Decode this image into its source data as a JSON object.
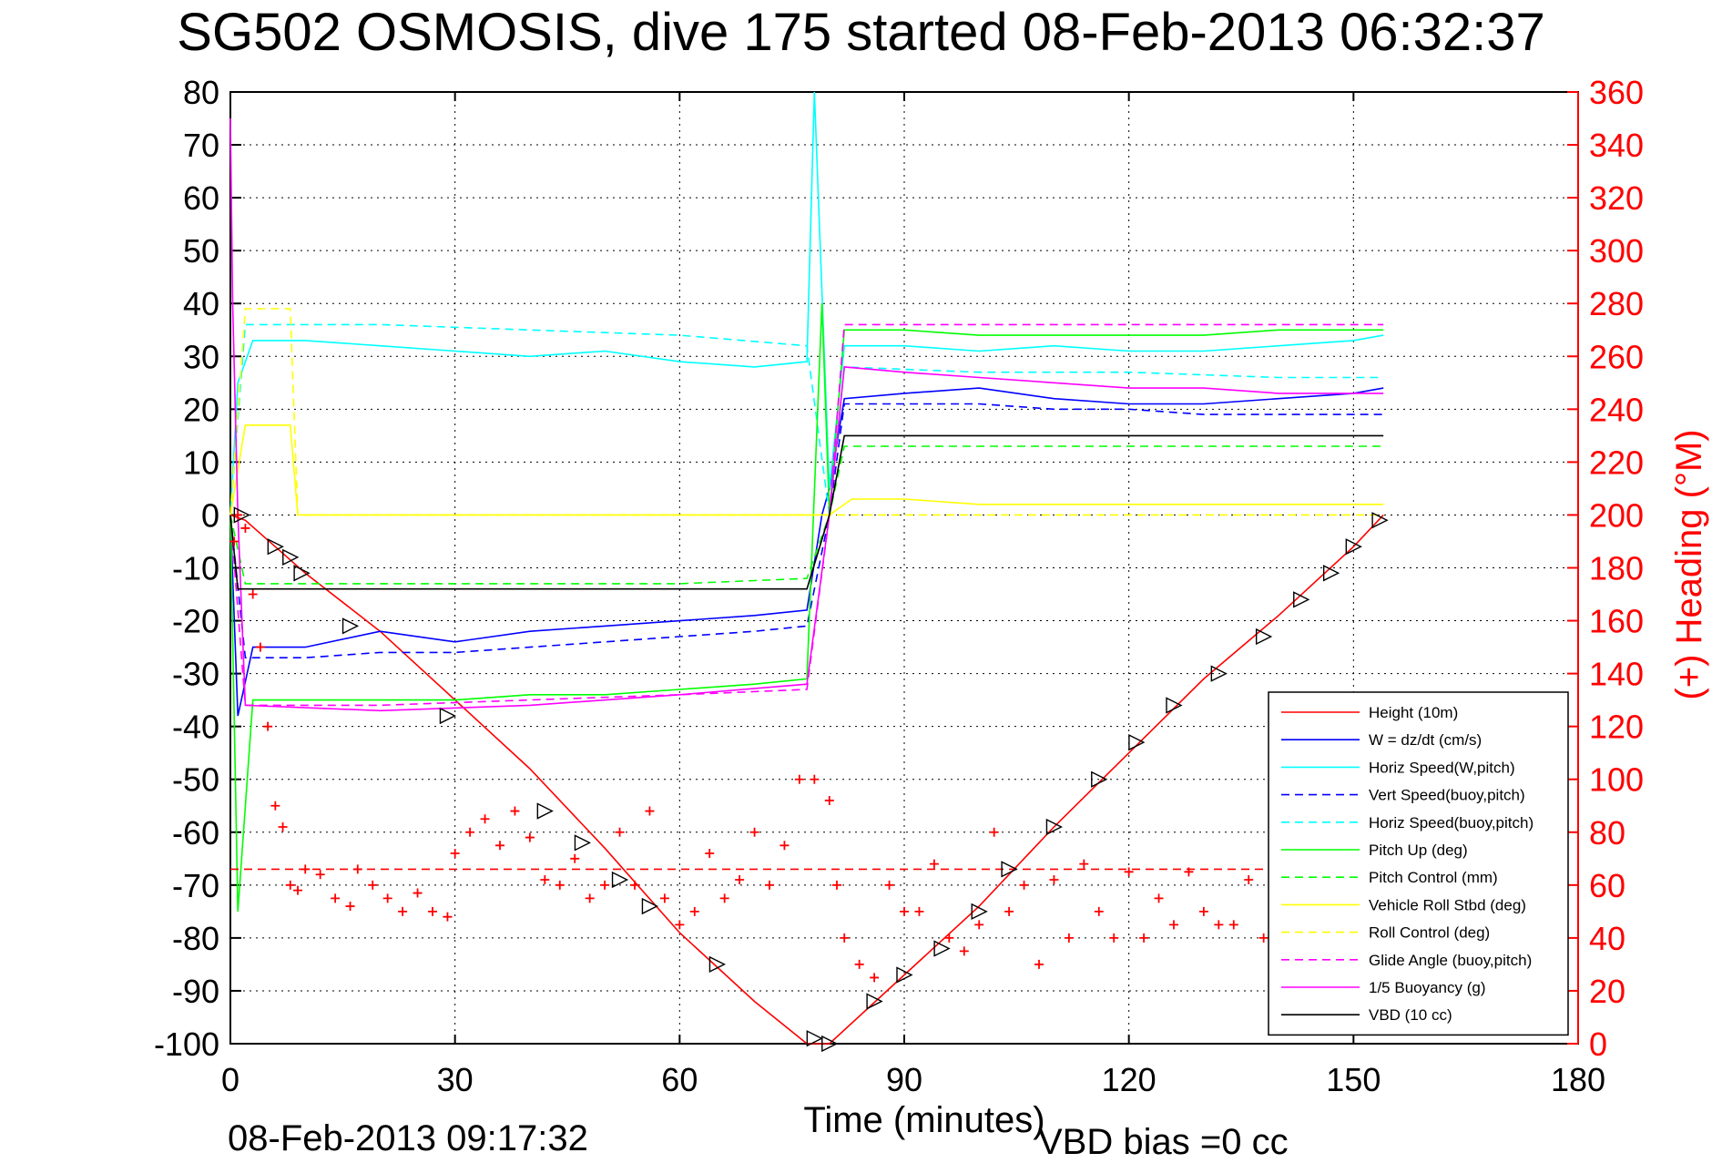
{
  "chart_data": {
    "type": "line",
    "title": "SG502 OSMOSIS, dive 175 started 08-Feb-2013 06:32:37",
    "xlabel": "Time (minutes)",
    "ylabel_right": "(+) Heading (°M)",
    "footer_date": "08-Feb-2013 09:17:32",
    "footer_vbd": "VBD bias =0 cc",
    "xlim": [
      0,
      180
    ],
    "ylim": [
      -100,
      80
    ],
    "ylim_right": [
      0,
      360
    ],
    "x_ticks": [
      "0",
      "30",
      "60",
      "90",
      "120",
      "150",
      "180"
    ],
    "y_ticks": [
      "-100",
      "-90",
      "-80",
      "-70",
      "-60",
      "-50",
      "-40",
      "-30",
      "-20",
      "-10",
      "0",
      "10",
      "20",
      "30",
      "40",
      "50",
      "60",
      "70",
      "80"
    ],
    "y_ticks_right": [
      "0",
      "20",
      "40",
      "60",
      "80",
      "100",
      "120",
      "140",
      "160",
      "180",
      "200",
      "220",
      "240",
      "260",
      "280",
      "300",
      "320",
      "340",
      "360"
    ],
    "grid": true,
    "legend_position": "lower-right",
    "series": [
      {
        "name": "Height (10m)",
        "color": "#ff0000",
        "style": "solid",
        "x": [
          0,
          2,
          10,
          20,
          30,
          40,
          50,
          60,
          70,
          77,
          80,
          90,
          100,
          110,
          120,
          130,
          140,
          150,
          154
        ],
        "y": [
          0,
          -1,
          -11,
          -22,
          -35,
          -48,
          -63,
          -79,
          -92,
          -100,
          -100,
          -87,
          -74,
          -59,
          -45,
          -31,
          -19,
          -6,
          0
        ]
      },
      {
        "name": "W = dz/dt (cm/s)",
        "color": "#0000ff",
        "style": "solid",
        "x": [
          0,
          1,
          3,
          10,
          20,
          30,
          40,
          50,
          60,
          70,
          77,
          79,
          80,
          82,
          90,
          100,
          110,
          120,
          130,
          140,
          150,
          154
        ],
        "y": [
          0,
          -38,
          -25,
          -25,
          -22,
          -24,
          -22,
          -21,
          -20,
          -19,
          -18,
          0,
          5,
          22,
          23,
          24,
          22,
          21,
          21,
          22,
          23,
          24
        ]
      },
      {
        "name": "Horiz Speed(W,pitch)",
        "color": "#00ffff",
        "style": "solid",
        "x": [
          0,
          1,
          3,
          10,
          20,
          30,
          40,
          50,
          60,
          70,
          77,
          78,
          80,
          82,
          90,
          100,
          110,
          120,
          130,
          140,
          150,
          154
        ],
        "y": [
          0,
          25,
          33,
          33,
          32,
          31,
          30,
          31,
          29,
          28,
          29,
          80,
          5,
          32,
          32,
          31,
          32,
          31,
          31,
          32,
          33,
          34
        ]
      },
      {
        "name": "Vert Speed(buoy,pitch)",
        "color": "#0000ff",
        "style": "dashed",
        "x": [
          0,
          2,
          10,
          20,
          30,
          40,
          50,
          60,
          70,
          77,
          80,
          82,
          90,
          100,
          110,
          120,
          130,
          140,
          150,
          154
        ],
        "y": [
          0,
          -27,
          -27,
          -26,
          -26,
          -25,
          -24,
          -23,
          -22,
          -21,
          0,
          21,
          21,
          21,
          20,
          20,
          19,
          19,
          19,
          19
        ]
      },
      {
        "name": "Horiz Speed(buoy,pitch)",
        "color": "#00ffff",
        "style": "dashed",
        "x": [
          0,
          2,
          20,
          40,
          60,
          77,
          80,
          82,
          100,
          120,
          140,
          154
        ],
        "y": [
          0,
          36,
          36,
          35,
          34,
          32,
          0,
          28,
          27,
          27,
          26,
          26
        ]
      },
      {
        "name": "Pitch Up (deg)",
        "color": "#00ff00",
        "style": "solid",
        "x": [
          0,
          1,
          3,
          10,
          20,
          30,
          40,
          50,
          60,
          70,
          77,
          79,
          80,
          82,
          90,
          100,
          110,
          120,
          130,
          140,
          150,
          154
        ],
        "y": [
          0,
          -75,
          -35,
          -35,
          -35,
          -35,
          -34,
          -34,
          -33,
          -32,
          -31,
          40,
          0,
          35,
          35,
          34,
          34,
          34,
          34,
          35,
          35,
          35
        ]
      },
      {
        "name": "Pitch Control (mm)",
        "color": "#00ff00",
        "style": "dashed",
        "x": [
          0,
          2,
          20,
          40,
          60,
          77,
          80,
          82,
          100,
          120,
          140,
          154
        ],
        "y": [
          0,
          -13,
          -13,
          -13,
          -13,
          -12,
          0,
          13,
          13,
          13,
          13,
          13
        ]
      },
      {
        "name": "Vehicle Roll Stbd (deg)",
        "color": "#ffff00",
        "style": "solid",
        "x": [
          0,
          2,
          8,
          9,
          20,
          40,
          60,
          77,
          80,
          83,
          90,
          100,
          110,
          120,
          130,
          140,
          150,
          154
        ],
        "y": [
          0,
          17,
          17,
          0,
          0,
          0,
          0,
          0,
          0,
          3,
          3,
          2,
          2,
          2,
          2,
          2,
          2,
          2
        ]
      },
      {
        "name": "Roll Control (deg)",
        "color": "#ffff00",
        "style": "dashed",
        "x": [
          0,
          2,
          8,
          9,
          20,
          40,
          60,
          77,
          80,
          83,
          100,
          120,
          140,
          154
        ],
        "y": [
          0,
          39,
          39,
          0,
          0,
          0,
          0,
          0,
          0,
          0,
          0,
          0,
          0,
          0
        ]
      },
      {
        "name": "Glide Angle (buoy,pitch)",
        "color": "#ff00ff",
        "style": "dashed",
        "x": [
          0,
          2,
          20,
          40,
          60,
          77,
          80,
          82,
          100,
          120,
          140,
          154
        ],
        "y": [
          0,
          -36,
          -36,
          -35,
          -34,
          -33,
          0,
          36,
          36,
          36,
          36,
          36
        ]
      },
      {
        "name": "1/5 Buoyancy (g)",
        "color": "#ff00ff",
        "style": "solid",
        "x": [
          0,
          0.3,
          1,
          2,
          20,
          40,
          60,
          77,
          80,
          82,
          90,
          100,
          110,
          120,
          130,
          140,
          150,
          154
        ],
        "y": [
          75,
          40,
          0,
          -36,
          -37,
          -36,
          -34,
          -32,
          0,
          28,
          27,
          26,
          25,
          24,
          24,
          23,
          23,
          23
        ]
      },
      {
        "name": "VBD (10 cc)",
        "color": "#000000",
        "style": "solid",
        "x": [
          0,
          1,
          2,
          77,
          80,
          82,
          154
        ],
        "y": [
          0,
          -14,
          -14,
          -14,
          0,
          15,
          15
        ]
      }
    ],
    "heading_series": {
      "name": "(+) Heading",
      "color": "#ff0000",
      "marker": "+",
      "axis": "right",
      "x": [
        0.5,
        1,
        2,
        3,
        4,
        5,
        6,
        7,
        8,
        9,
        10,
        12,
        14,
        16,
        17,
        19,
        21,
        23,
        25,
        27,
        29,
        30,
        32,
        34,
        36,
        38,
        40,
        42,
        44,
        46,
        48,
        50,
        52,
        54,
        56,
        58,
        60,
        62,
        64,
        66,
        68,
        70,
        72,
        74,
        76,
        78,
        80,
        81,
        82,
        84,
        86,
        88,
        90,
        92,
        94,
        96,
        98,
        100,
        102,
        104,
        106,
        108,
        110,
        112,
        114,
        116,
        118,
        120,
        122,
        124,
        126,
        128,
        130,
        132,
        134,
        136,
        138,
        140
      ],
      "y": [
        190,
        200,
        195,
        170,
        150,
        120,
        90,
        82,
        60,
        58,
        66,
        64,
        55,
        52,
        66,
        60,
        55,
        50,
        57,
        50,
        48,
        72,
        80,
        85,
        75,
        88,
        78,
        62,
        60,
        70,
        55,
        60,
        80,
        60,
        88,
        55,
        45,
        50,
        72,
        55,
        62,
        80,
        60,
        75,
        100,
        100,
        92,
        60,
        40,
        30,
        25,
        60,
        50,
        50,
        68,
        40,
        35,
        45,
        80,
        50,
        60,
        30,
        62,
        40,
        68,
        50,
        40,
        65,
        40,
        55,
        45,
        65,
        50,
        45,
        45,
        62,
        40,
        65
      ]
    },
    "heading_reference_line": {
      "axis": "right",
      "value": 66,
      "style": "dashed",
      "color": "#ff0000"
    },
    "turn_markers": {
      "x": [
        1.5,
        6,
        8,
        9.5,
        16,
        29,
        42,
        47,
        52,
        56,
        65,
        78,
        80,
        86,
        90,
        95,
        100,
        104,
        110,
        116,
        121,
        126,
        132,
        138,
        143,
        147,
        150,
        153.5
      ],
      "y": [
        0,
        -6,
        -8,
        -11,
        -21,
        -38,
        -56,
        -62,
        -69,
        -74,
        -85,
        -99,
        -100,
        -92,
        -87,
        -82,
        -75,
        -67,
        -59,
        -50,
        -43,
        -36,
        -30,
        -23,
        -16,
        -11,
        -6,
        -1
      ]
    }
  }
}
